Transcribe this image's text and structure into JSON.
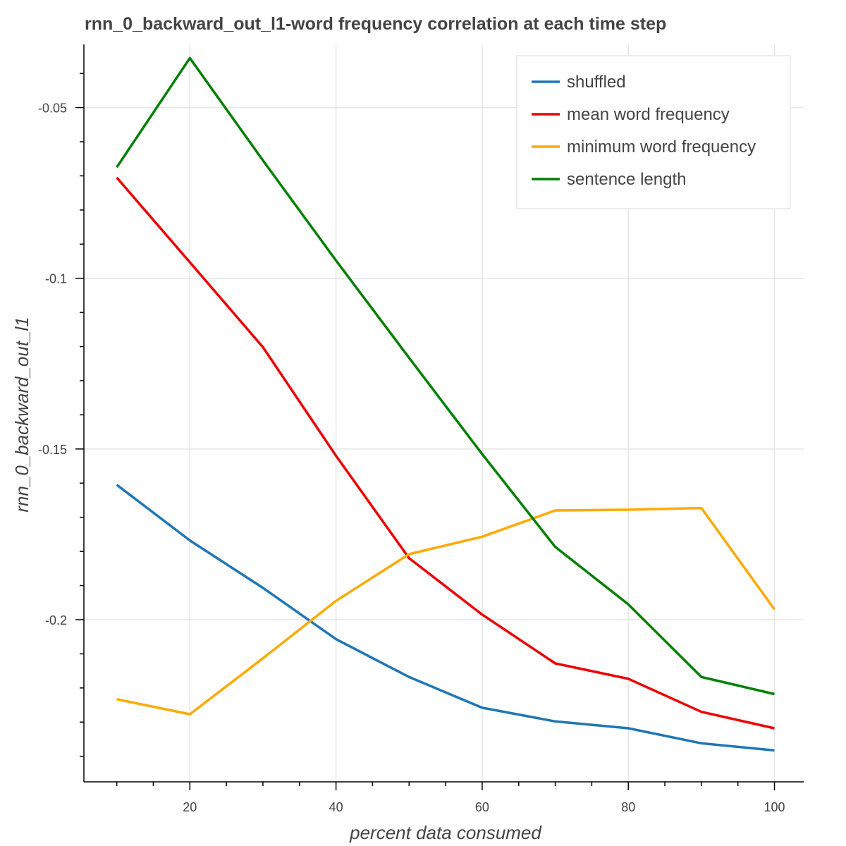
{
  "chart_data": {
    "type": "line",
    "title": "rnn_0_backward_out_l1-word frequency correlation at each time step",
    "xlabel": "percent data consumed",
    "ylabel": "rnn_0_backward_out_l1",
    "x": [
      10,
      20,
      30,
      40,
      50,
      60,
      70,
      80,
      90,
      100
    ],
    "xlim": [
      5.5,
      104
    ],
    "ylim": [
      -0.2475,
      -0.0315
    ],
    "xticks": [
      20,
      40,
      60,
      80,
      100
    ],
    "xtick_labels": [
      "20",
      "40",
      "60",
      "80",
      "100"
    ],
    "yticks": [
      -0.05,
      -0.1,
      -0.15,
      -0.2
    ],
    "ytick_labels": [
      "-0.05",
      "-0.1",
      "-0.15",
      "-0.2"
    ],
    "grid": true,
    "legend_position": "top-right",
    "series": [
      {
        "name": "shuffled",
        "color": "#1f77b4",
        "values": [
          -0.1605,
          -0.1768,
          -0.1907,
          -0.2057,
          -0.2168,
          -0.2258,
          -0.2298,
          -0.2318,
          -0.2362,
          -0.2383
        ]
      },
      {
        "name": "mean word frequency",
        "color": "#ee0000",
        "values": [
          -0.0705,
          -0.0953,
          -0.1202,
          -0.152,
          -0.182,
          -0.1985,
          -0.2128,
          -0.2173,
          -0.227,
          -0.2318
        ]
      },
      {
        "name": "minimum word frequency",
        "color": "#ffaa00",
        "values": [
          -0.2233,
          -0.2277,
          -0.2113,
          -0.1945,
          -0.1808,
          -0.1757,
          -0.168,
          -0.1678,
          -0.1673,
          -0.197
        ]
      },
      {
        "name": "sentence length",
        "color": "#008000",
        "values": [
          -0.0675,
          -0.0355,
          -0.0655,
          -0.0948,
          -0.1233,
          -0.1515,
          -0.1787,
          -0.1955,
          -0.2168,
          -0.2218
        ]
      }
    ]
  }
}
